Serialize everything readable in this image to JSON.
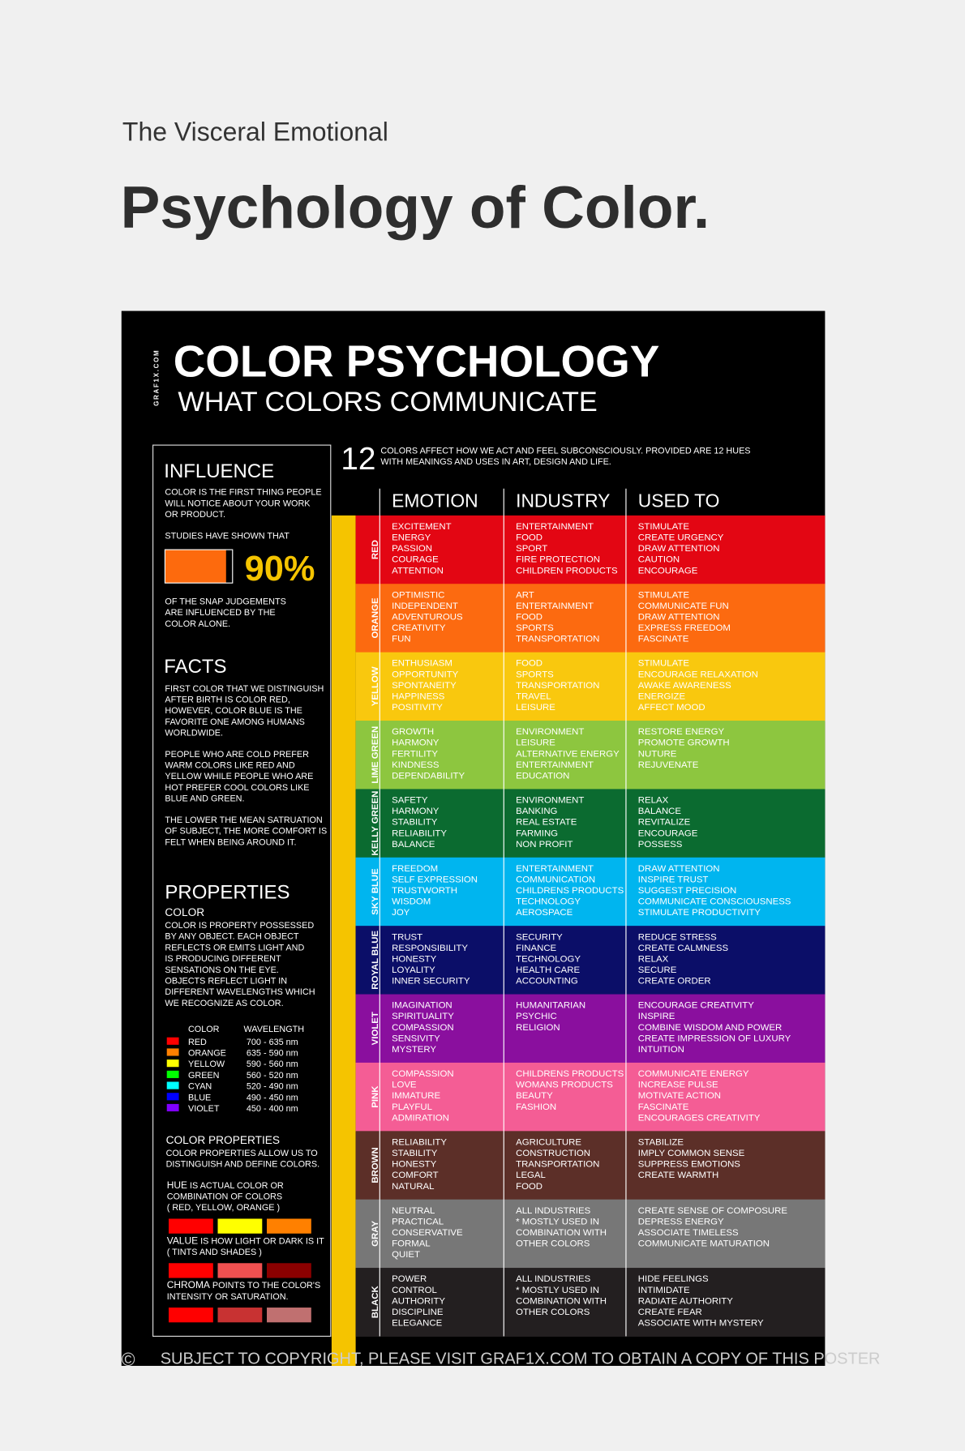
{
  "header": {
    "subtitle": "The Visceral Emotional",
    "title": "Psychology of Color."
  },
  "poster": {
    "brand": "GRAF1X.COM",
    "title": "COLOR PSYCHOLOGY",
    "subtitle": "WHAT COLORS COMMUNICATE",
    "intro_number": "12",
    "intro_lines": [
      "COLORS AFFECT HOW WE ACT AND FEEL SUBCONSCIOUSLY.  PROVIDED ARE 12 HUES",
      "WITH MEANINGS AND USES IN ART, DESIGN AND LIFE."
    ],
    "columns": [
      "EMOTION",
      "INDUSTRY",
      "USED TO"
    ],
    "rows": [
      {
        "name": "RED",
        "color": "#e30613",
        "emotion": [
          "EXCITEMENT",
          "ENERGY",
          "PASSION",
          "COURAGE",
          "ATTENTION"
        ],
        "industry": [
          "ENTERTAINMENT",
          "FOOD",
          "SPORT",
          "FIRE PROTECTION",
          "CHILDREN PRODUCTS"
        ],
        "used_to": [
          "STIMULATE",
          "CREATE URGENCY",
          "DRAW ATTENTION",
          "CAUTION",
          "ENCOURAGE"
        ]
      },
      {
        "name": "ORANGE",
        "color": "#fc6a10",
        "emotion": [
          "OPTIMISTIC",
          "INDEPENDENT",
          "ADVENTUROUS",
          "CREATIVITY",
          "FUN"
        ],
        "industry": [
          "ART",
          "ENTERTAINMENT",
          "FOOD",
          "SPORTS",
          "TRANSPORTATION"
        ],
        "used_to": [
          "STIMULATE",
          "COMMUNICATE FUN",
          "DRAW ATTENTION",
          "EXPRESS FREEDOM",
          "FASCINATE"
        ]
      },
      {
        "name": "YELLOW",
        "color": "#f9c80e",
        "emotion": [
          "ENTHUSIASM",
          "OPPORTUNITY",
          "SPONTANEITY",
          "HAPPINESS",
          "POSITIVITY"
        ],
        "industry": [
          "FOOD",
          "SPORTS",
          "TRANSPORTATION",
          "TRAVEL",
          "LEISURE"
        ],
        "used_to": [
          "STIMULATE",
          "ENCOURAGE RELAXATION",
          "AWAKE AWARENESS",
          "ENERGIZE",
          "AFFECT MOOD"
        ]
      },
      {
        "name": "LIME GREEN",
        "color": "#8dc63f",
        "emotion": [
          "GROWTH",
          "HARMONY",
          "FERTILITY",
          "KINDNESS",
          "DEPENDABILITY"
        ],
        "industry": [
          "ENVIRONMENT",
          "LEISURE",
          "ALTERNATIVE ENERGY",
          "ENTERTAINMENT",
          "EDUCATION"
        ],
        "used_to": [
          "RESTORE ENERGY",
          "PROMOTE GROWTH",
          "NUTURE",
          "REJUVENATE"
        ]
      },
      {
        "name": "KELLY GREEN",
        "color": "#0b6b30",
        "emotion": [
          "SAFETY",
          "HARMONY",
          "STABILITY",
          "RELIABILITY",
          "BALANCE"
        ],
        "industry": [
          "ENVIRONMENT",
          "BANKING",
          "REAL ESTATE",
          "FARMING",
          "NON PROFIT"
        ],
        "used_to": [
          "RELAX",
          "BALANCE",
          "REVITALIZE",
          "ENCOURAGE",
          "POSSESS"
        ]
      },
      {
        "name": "SKY BLUE",
        "color": "#00b5ef",
        "emotion": [
          "FREEDOM",
          "SELF EXPRESSION",
          "TRUSTWORTH",
          "WISDOM",
          "JOY"
        ],
        "industry": [
          "ENTERTAINMENT",
          "COMMUNICATION",
          "CHILDRENS PRODUCTS",
          "TECHNOLOGY",
          "AEROSPACE"
        ],
        "used_to": [
          "DRAW ATTENTION",
          "INSPIRE TRUST",
          "SUGGEST PRECISION",
          "COMMUNICATE CONSCIOUSNESS",
          "STIMULATE PRODUCTIVITY"
        ]
      },
      {
        "name": "ROYAL BLUE",
        "color": "#0b0e68",
        "emotion": [
          "TRUST",
          "RESPONSIBILITY",
          "HONESTY",
          "LOYALITY",
          "INNER SECURITY"
        ],
        "industry": [
          "SECURITY",
          "FINANCE",
          "TECHNOLOGY",
          "HEALTH CARE",
          "ACCOUNTING"
        ],
        "used_to": [
          "REDUCE STRESS",
          "CREATE CALMNESS",
          "RELAX",
          "SECURE",
          "CREATE ORDER"
        ]
      },
      {
        "name": "VIOLET",
        "color": "#8a0f9e",
        "emotion": [
          "IMAGINATION",
          "SPIRITUALITY",
          "COMPASSION",
          "SENSIVITY",
          "MYSTERY"
        ],
        "industry": [
          "HUMANITARIAN",
          "PSYCHIC",
          "RELIGION"
        ],
        "used_to": [
          "ENCOURAGE CREATIVITY",
          "INSPIRE",
          "COMBINE WISDOM AND POWER",
          "CREATE IMPRESSION OF LUXURY",
          "INTUITION"
        ]
      },
      {
        "name": "PINK",
        "color": "#f45d95",
        "emotion": [
          "COMPASSION",
          "LOVE",
          "IMMATURE",
          "PLAYFUL",
          "ADMIRATION"
        ],
        "industry": [
          "CHILDRENS PRODUCTS",
          "WOMANS PRODUCTS",
          "BEAUTY",
          "FASHION"
        ],
        "used_to": [
          "COMMUNICATE ENERGY",
          "INCREASE PULSE",
          "MOTIVATE ACTION",
          "FASCINATE",
          "ENCOURAGES CREATIVITY"
        ]
      },
      {
        "name": "BROWN",
        "color": "#5c2f28",
        "emotion": [
          "RELIABILITY",
          "STABILITY",
          "HONESTY",
          "COMFORT",
          "NATURAL"
        ],
        "industry": [
          "AGRICULTURE",
          "CONSTRUCTION",
          "TRANSPORTATION",
          "LEGAL",
          "FOOD"
        ],
        "used_to": [
          "STABILIZE",
          "IMPLY COMMON SENSE",
          "SUPPRESS EMOTIONS",
          "CREATE WARMTH"
        ]
      },
      {
        "name": "GRAY",
        "color": "#777777",
        "emotion": [
          "NEUTRAL",
          "PRACTICAL",
          "CONSERVATIVE",
          "FORMAL",
          "QUIET"
        ],
        "industry": [
          "ALL INDUSTRIES",
          "* MOSTLY USED IN",
          "COMBINATION WITH",
          "OTHER COLORS"
        ],
        "used_to": [
          "CREATE SENSE OF COMPOSURE",
          "DEPRESS ENERGY",
          "ASSOCIATE TIMELESS",
          "COMMUNICATE MATURATION"
        ]
      },
      {
        "name": "BLACK",
        "color": "#231f20",
        "emotion": [
          "POWER",
          "CONTROL",
          "AUTHORITY",
          "DISCIPLINE",
          "ELEGANCE"
        ],
        "industry": [
          "ALL INDUSTRIES",
          "* MOSTLY USED IN",
          "COMBINATION WITH",
          "OTHER COLORS"
        ],
        "used_to": [
          "HIDE FEELINGS",
          "INTIMIDATE",
          "RADIATE AUTHORITY",
          "CREATE FEAR",
          "ASSOCIATE WITH MYSTERY"
        ]
      }
    ],
    "sidebar": {
      "influence": {
        "title": "INFLUENCE",
        "lines": [
          "COLOR IS THE FIRST THING PEOPLE",
          "WILL NOTICE ABOUT YOUR WORK",
          "OR PRODUCT."
        ],
        "lead": "STUDIES HAVE SHOWN THAT",
        "stat": "90%",
        "after": [
          "OF THE SNAP JUDGEMENTS",
          "ARE INFLUENCED BY THE",
          "COLOR  ALONE."
        ]
      },
      "facts": {
        "title": "FACTS",
        "paragraphs": [
          [
            "FIRST COLOR THAT WE DISTINGUISH",
            "AFTER BIRTH IS COLOR RED,",
            "HOWEVER, COLOR BLUE IS THE",
            "FAVORITE ONE AMONG HUMANS",
            "WORLDWIDE."
          ],
          [
            "PEOPLE WHO ARE COLD PREFER",
            "WARM COLORS LIKE RED AND",
            "YELLOW WHILE PEOPLE WHO ARE",
            "HOT PREFER COOL COLORS LIKE",
            "BLUE AND GREEN."
          ],
          [
            "THE LOWER THE MEAN SATRUATION",
            "OF SUBJECT, THE MORE COMFORT IS",
            "FELT WHEN BEING AROUND IT."
          ]
        ]
      },
      "properties": {
        "title": "PROPERTIES",
        "subtitle": "COLOR",
        "lines": [
          "COLOR IS PROPERTY POSSESSED",
          "BY ANY OBJECT. EACH OBJECT",
          "REFLECTS OR EMITS LIGHT AND",
          "IS PRODUCING DIFFERENT",
          "SENSATIONS ON THE EYE.",
          "OBJECTS REFLECT LIGHT IN",
          "DIFFERENT WAVELENGTHS WHICH",
          "WE RECOGNIZE AS COLOR."
        ],
        "table_headers": [
          "COLOR",
          "WAVELENGTH"
        ],
        "wavelengths": [
          {
            "name": "RED",
            "range": "700 - 635 nm",
            "color": "#ff0000"
          },
          {
            "name": "ORANGE",
            "range": "635 - 590 nm",
            "color": "#ff8000"
          },
          {
            "name": "YELLOW",
            "range": "590 - 560 nm",
            "color": "#ffff00"
          },
          {
            "name": "GREEN",
            "range": "560 - 520 nm",
            "color": "#00ff00"
          },
          {
            "name": "CYAN",
            "range": "520 - 490 nm",
            "color": "#00ffff"
          },
          {
            "name": "BLUE",
            "range": "490 - 450 nm",
            "color": "#0000ff"
          },
          {
            "name": "VIOLET",
            "range": "450 - 400 nm",
            "color": "#8000ff"
          }
        ]
      },
      "color_properties": {
        "title": "COLOR PROPERTIES",
        "lines": [
          "COLOR PROPERTIES ALLOW US TO",
          "DISTINGUISH AND DEFINE COLORS."
        ],
        "items": [
          {
            "term": "HUE",
            "lines": [
              " IS ACTUAL COLOR OR",
              "COMBINATION OF COLORS",
              "( RED, YELLOW, ORANGE )"
            ],
            "swatches": [
              "#ff0000",
              "#ffff00",
              "#ff8000"
            ]
          },
          {
            "term": "VALUE",
            "lines": [
              " IS HOW LIGHT OR DARK IS IT",
              "( TINTS AND SHADES )"
            ],
            "swatches": [
              "#ff0000",
              "#f05050",
              "#8b0000"
            ]
          },
          {
            "term": "CHROMA",
            "lines": [
              " POINTS TO THE COLOR'S",
              "INTENSITY OR SATURATION."
            ],
            "swatches": [
              "#ff0000",
              "#c83232",
              "#c07070"
            ]
          }
        ]
      }
    },
    "footer": {
      "symbol": "©",
      "text": "SUBJECT TO COPYRIGHT, PLEASE VISIT GRAF1X.COM TO OBTAIN A COPY OF THIS POSTER"
    }
  }
}
